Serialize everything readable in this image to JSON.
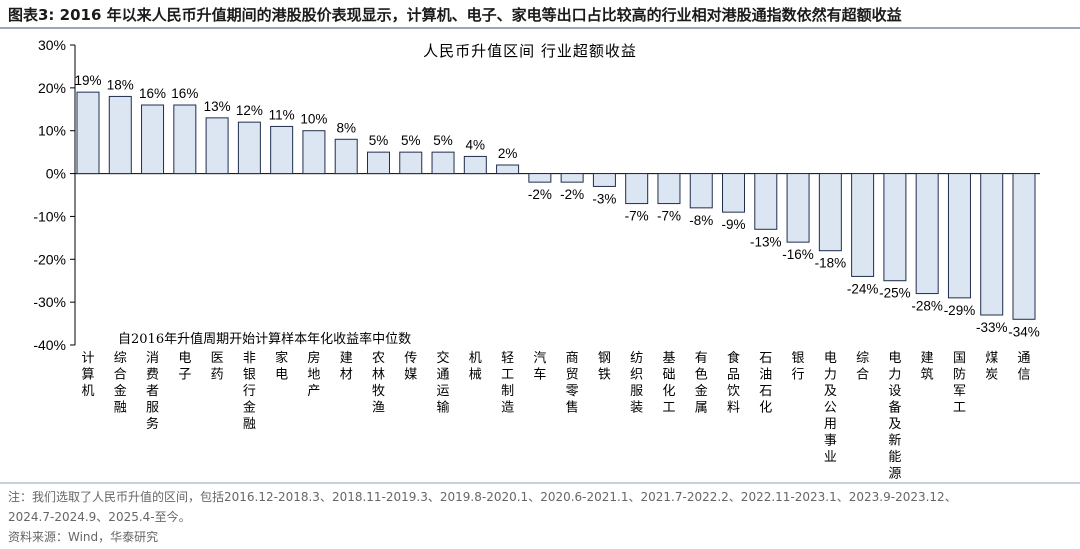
{
  "figure_title": "图表3:  2016 年以来人民币升值期间的港股股价表现显示，计算机、电子、家电等出口占比较高的行业相对港股通指数依然有超额收益",
  "notes": {
    "line1": "注：我们选取了人民币升值的区间，包括2016.12-2018.3、2018.11-2019.3、2019.8-2020.1、2020.6-2021.1、2021.7-2022.2、2022.11-2023.1、2023.9-2023.12、",
    "line2": "2024.7-2024.9、2025.4-至今。",
    "source": "资料来源：Wind，华泰研究"
  },
  "chart_data": {
    "type": "bar",
    "title": "人民币升值区间 行业超额收益",
    "annotation": "自2016年升值周期开始计算样本年化收益率中位数",
    "categories": [
      "计算机",
      "综合金融",
      "消费者服务",
      "电子",
      "医药",
      "非银行金融",
      "家电",
      "房地产",
      "建材",
      "农林牧渔",
      "传媒",
      "交通运输",
      "机械",
      "轻工制造",
      "汽车",
      "商贸零售",
      "钢铁",
      "纺织服装",
      "基础化工",
      "有色金属",
      "食品饮料",
      "石油石化",
      "银行",
      "电力及公用事业",
      "综合",
      "电力设备及新能源",
      "建筑",
      "国防军工",
      "煤炭",
      "通信"
    ],
    "values": [
      19,
      18,
      16,
      16,
      13,
      12,
      11,
      10,
      8,
      5,
      5,
      5,
      4,
      2,
      -2,
      -2,
      -3,
      -7,
      -7,
      -8,
      -9,
      -13,
      -16,
      -18,
      -24,
      -25,
      -28,
      -29,
      -33,
      -34
    ],
    "unit": "%",
    "ylim": [
      -40,
      30
    ],
    "yticks": [
      "30%",
      "20%",
      "10%",
      "0%",
      "-10%",
      "-20%",
      "-30%",
      "-40%"
    ],
    "grid": false,
    "colors": {
      "bar_fill": "#dce6f2",
      "bar_edge": "#1f2d4d"
    }
  }
}
